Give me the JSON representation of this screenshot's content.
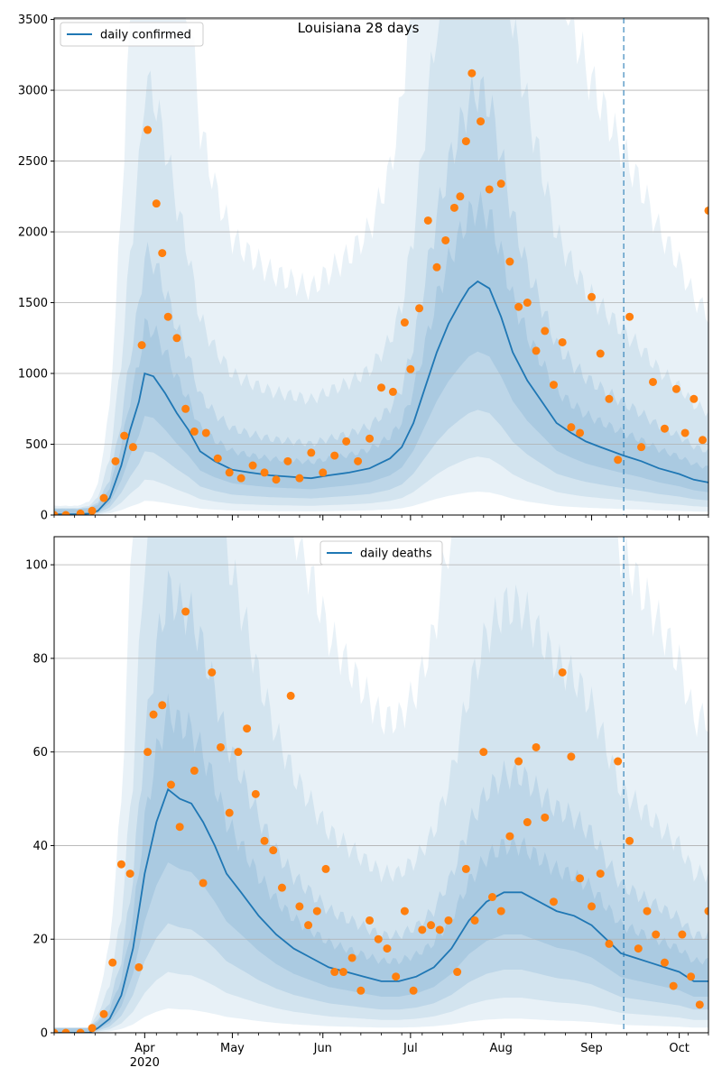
{
  "figure": {
    "background": "#ffffff",
    "colors": {
      "line": "#1f77b4",
      "points": "#ff7f0e",
      "band": "#1f77b4",
      "grid": "#b0b0b0",
      "cutoff": "#1f77b4"
    }
  },
  "chart_data": [
    {
      "type": "line",
      "title": "Louisiana 28 days",
      "legend": {
        "entries": [
          "daily confirmed"
        ],
        "placement": "top-left"
      },
      "xlabel": "",
      "ylabel": "",
      "grid": "y-only",
      "ylim": [
        0,
        3510
      ],
      "yticks": [
        0,
        500,
        1000,
        1500,
        2000,
        2500,
        3000,
        3500
      ],
      "xlim": [
        "2020-03-01",
        "2020-10-11"
      ],
      "xticks": [
        {
          "date": "2020-04-01",
          "label": "Apr",
          "sublabel": "2020"
        },
        {
          "date": "2020-05-01",
          "label": "May",
          "sublabel": ""
        },
        {
          "date": "2020-06-01",
          "label": "Jun",
          "sublabel": ""
        },
        {
          "date": "2020-07-01",
          "label": "Jul",
          "sublabel": ""
        },
        {
          "date": "2020-08-01",
          "label": "Aug",
          "sublabel": ""
        },
        {
          "date": "2020-09-01",
          "label": "Sep",
          "sublabel": ""
        },
        {
          "date": "2020-10-01",
          "label": "Oct",
          "sublabel": ""
        }
      ],
      "forecast_start": "2020-09-12",
      "series": [
        {
          "name": "daily confirmed",
          "kind": "line",
          "x": [
            "2020-03-01",
            "2020-03-09",
            "2020-03-13",
            "2020-03-16",
            "2020-03-20",
            "2020-03-24",
            "2020-03-27",
            "2020-03-30",
            "2020-04-01",
            "2020-04-04",
            "2020-04-08",
            "2020-04-12",
            "2020-04-16",
            "2020-04-20",
            "2020-04-25",
            "2020-05-01",
            "2020-05-07",
            "2020-05-14",
            "2020-05-21",
            "2020-05-28",
            "2020-06-03",
            "2020-06-10",
            "2020-06-17",
            "2020-06-24",
            "2020-06-28",
            "2020-07-02",
            "2020-07-06",
            "2020-07-10",
            "2020-07-14",
            "2020-07-18",
            "2020-07-21",
            "2020-07-24",
            "2020-07-28",
            "2020-08-01",
            "2020-08-05",
            "2020-08-10",
            "2020-08-15",
            "2020-08-20",
            "2020-08-25",
            "2020-08-30",
            "2020-09-04",
            "2020-09-08",
            "2020-09-12",
            "2020-09-18",
            "2020-09-24",
            "2020-10-01",
            "2020-10-06",
            "2020-10-11"
          ],
          "y": [
            5,
            5,
            10,
            30,
            120,
            350,
            600,
            800,
            1000,
            980,
            860,
            720,
            600,
            450,
            380,
            320,
            300,
            280,
            270,
            260,
            280,
            300,
            330,
            400,
            480,
            650,
            900,
            1150,
            1350,
            1500,
            1600,
            1650,
            1600,
            1400,
            1150,
            950,
            800,
            650,
            580,
            520,
            480,
            450,
            420,
            380,
            330,
            290,
            250,
            230
          ]
        },
        {
          "name": "",
          "kind": "scatter",
          "x": [
            "2020-03-01",
            "2020-03-05",
            "2020-03-10",
            "2020-03-14",
            "2020-03-18",
            "2020-03-22",
            "2020-03-25",
            "2020-03-28",
            "2020-03-31",
            "2020-04-02",
            "2020-04-05",
            "2020-04-07",
            "2020-04-09",
            "2020-04-12",
            "2020-04-15",
            "2020-04-18",
            "2020-04-22",
            "2020-04-26",
            "2020-04-30",
            "2020-05-04",
            "2020-05-08",
            "2020-05-12",
            "2020-05-16",
            "2020-05-20",
            "2020-05-24",
            "2020-05-28",
            "2020-06-01",
            "2020-06-05",
            "2020-06-09",
            "2020-06-13",
            "2020-06-17",
            "2020-06-21",
            "2020-06-25",
            "2020-06-29",
            "2020-07-01",
            "2020-07-04",
            "2020-07-07",
            "2020-07-10",
            "2020-07-13",
            "2020-07-16",
            "2020-07-18",
            "2020-07-20",
            "2020-07-22",
            "2020-07-25",
            "2020-07-28",
            "2020-08-01",
            "2020-08-04",
            "2020-08-07",
            "2020-08-10",
            "2020-08-13",
            "2020-08-16",
            "2020-08-19",
            "2020-08-22",
            "2020-08-25",
            "2020-08-28",
            "2020-09-01",
            "2020-09-04",
            "2020-09-07",
            "2020-09-10",
            "2020-09-14",
            "2020-09-18",
            "2020-09-22",
            "2020-09-26",
            "2020-09-30",
            "2020-10-03",
            "2020-10-06",
            "2020-10-09",
            "2020-10-11"
          ],
          "y": [
            0,
            0,
            10,
            30,
            120,
            380,
            560,
            480,
            1200,
            2720,
            2200,
            1850,
            1400,
            1250,
            750,
            590,
            580,
            400,
            300,
            260,
            350,
            300,
            250,
            380,
            260,
            440,
            300,
            420,
            520,
            380,
            540,
            900,
            870,
            1360,
            1030,
            1460,
            2080,
            1750,
            1940,
            2170,
            2250,
            2640,
            3120,
            2780,
            2300,
            2340,
            1790,
            1470,
            1500,
            1160,
            1300,
            920,
            1220,
            620,
            580,
            1540,
            1140,
            820,
            390,
            1400,
            480,
            940,
            610,
            890,
            580,
            820,
            530,
            2150
          ]
        }
      ]
    },
    {
      "type": "line",
      "title": "",
      "legend": {
        "entries": [
          "daily deaths"
        ],
        "placement": "top-center"
      },
      "xlabel": "",
      "ylabel": "",
      "grid": "y-only",
      "ylim": [
        0,
        106
      ],
      "yticks": [
        0,
        20,
        40,
        60,
        80,
        100
      ],
      "xlim": [
        "2020-03-01",
        "2020-10-11"
      ],
      "xticks": [
        {
          "date": "2020-04-01",
          "label": "Apr",
          "sublabel": "2020"
        },
        {
          "date": "2020-05-01",
          "label": "May",
          "sublabel": ""
        },
        {
          "date": "2020-06-01",
          "label": "Jun",
          "sublabel": ""
        },
        {
          "date": "2020-07-01",
          "label": "Jul",
          "sublabel": ""
        },
        {
          "date": "2020-08-01",
          "label": "Aug",
          "sublabel": ""
        },
        {
          "date": "2020-09-01",
          "label": "Sep",
          "sublabel": ""
        },
        {
          "date": "2020-10-01",
          "label": "Oct",
          "sublabel": ""
        }
      ],
      "forecast_start": "2020-09-12",
      "series": [
        {
          "name": "daily deaths",
          "kind": "line",
          "x": [
            "2020-03-01",
            "2020-03-13",
            "2020-03-16",
            "2020-03-20",
            "2020-03-24",
            "2020-03-28",
            "2020-04-01",
            "2020-04-05",
            "2020-04-09",
            "2020-04-13",
            "2020-04-17",
            "2020-04-21",
            "2020-04-25",
            "2020-04-29",
            "2020-05-04",
            "2020-05-10",
            "2020-05-16",
            "2020-05-22",
            "2020-05-28",
            "2020-06-03",
            "2020-06-09",
            "2020-06-15",
            "2020-06-21",
            "2020-06-27",
            "2020-07-03",
            "2020-07-09",
            "2020-07-15",
            "2020-07-21",
            "2020-07-27",
            "2020-08-02",
            "2020-08-08",
            "2020-08-14",
            "2020-08-20",
            "2020-08-26",
            "2020-09-01",
            "2020-09-06",
            "2020-09-11",
            "2020-09-16",
            "2020-09-21",
            "2020-09-26",
            "2020-10-01",
            "2020-10-06",
            "2020-10-11"
          ],
          "y": [
            0,
            0,
            1,
            3,
            8,
            18,
            34,
            45,
            52,
            50,
            49,
            45,
            40,
            34,
            30,
            25,
            21,
            18,
            16,
            14,
            13,
            12,
            11,
            11,
            12,
            14,
            18,
            24,
            28,
            30,
            30,
            28,
            26,
            25,
            23,
            20,
            17,
            16,
            15,
            14,
            13,
            11,
            11
          ]
        },
        {
          "name": "",
          "kind": "scatter",
          "x": [
            "2020-03-01",
            "2020-03-05",
            "2020-03-10",
            "2020-03-14",
            "2020-03-18",
            "2020-03-21",
            "2020-03-24",
            "2020-03-27",
            "2020-03-30",
            "2020-04-02",
            "2020-04-04",
            "2020-04-07",
            "2020-04-10",
            "2020-04-13",
            "2020-04-15",
            "2020-04-18",
            "2020-04-21",
            "2020-04-24",
            "2020-04-27",
            "2020-04-30",
            "2020-05-03",
            "2020-05-06",
            "2020-05-09",
            "2020-05-12",
            "2020-05-15",
            "2020-05-18",
            "2020-05-21",
            "2020-05-24",
            "2020-05-27",
            "2020-05-30",
            "2020-06-02",
            "2020-06-05",
            "2020-06-08",
            "2020-06-11",
            "2020-06-14",
            "2020-06-17",
            "2020-06-20",
            "2020-06-23",
            "2020-06-26",
            "2020-06-29",
            "2020-07-02",
            "2020-07-05",
            "2020-07-08",
            "2020-07-11",
            "2020-07-14",
            "2020-07-17",
            "2020-07-20",
            "2020-07-23",
            "2020-07-26",
            "2020-07-29",
            "2020-08-01",
            "2020-08-04",
            "2020-08-07",
            "2020-08-10",
            "2020-08-13",
            "2020-08-16",
            "2020-08-19",
            "2020-08-22",
            "2020-08-25",
            "2020-08-28",
            "2020-09-01",
            "2020-09-04",
            "2020-09-07",
            "2020-09-10",
            "2020-09-14",
            "2020-09-17",
            "2020-09-20",
            "2020-09-23",
            "2020-09-26",
            "2020-09-29",
            "2020-10-02",
            "2020-10-05",
            "2020-10-08",
            "2020-10-11"
          ],
          "y": [
            0,
            0,
            0,
            1,
            4,
            15,
            36,
            34,
            14,
            60,
            68,
            70,
            53,
            44,
            90,
            56,
            32,
            77,
            61,
            47,
            60,
            65,
            51,
            41,
            39,
            31,
            72,
            27,
            23,
            26,
            35,
            13,
            13,
            16,
            9,
            24,
            20,
            18,
            12,
            26,
            9,
            22,
            23,
            22,
            24,
            13,
            35,
            24,
            60,
            29,
            26,
            42,
            58,
            45,
            61,
            46,
            28,
            77,
            59,
            33,
            27,
            34,
            19,
            58,
            41,
            18,
            26,
            21,
            15,
            10,
            21,
            12,
            6,
            26
          ]
        }
      ]
    }
  ]
}
